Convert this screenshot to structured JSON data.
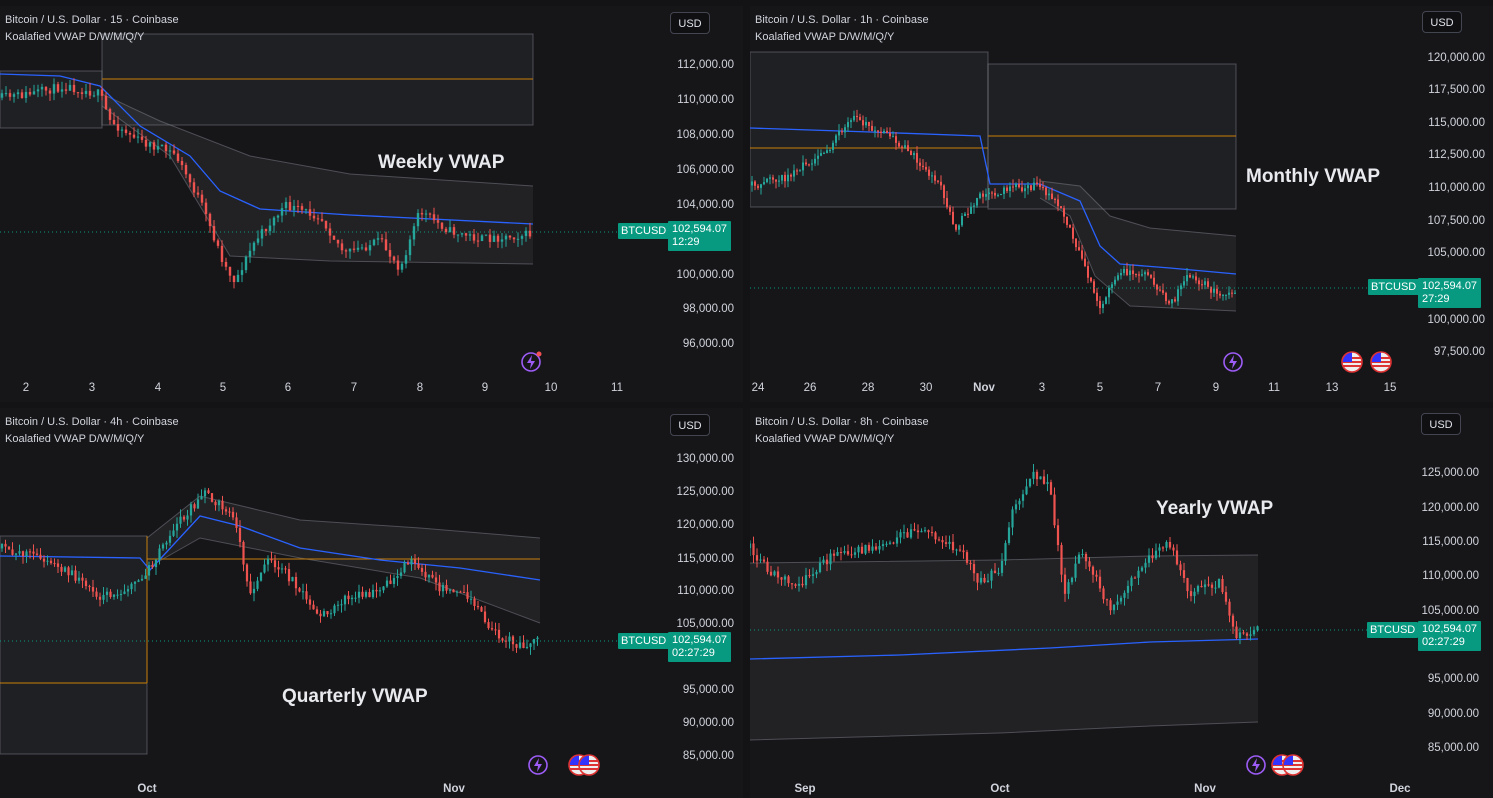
{
  "colors": {
    "bg": "#161619",
    "up": "#26a69a",
    "down": "#ef5350",
    "vwap": "#2962ff",
    "band": "#787b86",
    "anchor": "#c87f0a",
    "price_label": "#089981"
  },
  "icons": [
    "lightning-icon",
    "us-flag-icon"
  ],
  "panes": [
    {
      "title": "Bitcoin / U.S. Dollar · 15 · Coinbase",
      "indicator": "Koalafied VWAP D/W/M/Q/Y",
      "currency": "USD",
      "annotation": "Weekly VWAP",
      "symbol": "BTCUSD",
      "last_price": "102,594.07",
      "countdown": "12:29",
      "y_ticks": [
        "112,000.00",
        "110,000.00",
        "108,000.00",
        "106,000.00",
        "104,000.00",
        "100,000.00",
        "98,000.00",
        "96,000.00"
      ],
      "x_ticks": [
        "2",
        "3",
        "4",
        "5",
        "6",
        "7",
        "8",
        "9",
        "10",
        "11"
      ],
      "flags": 0
    },
    {
      "title": "Bitcoin / U.S. Dollar · 1h · Coinbase",
      "indicator": "Koalafied VWAP D/W/M/Q/Y",
      "currency": "USD",
      "annotation": "Monthly VWAP",
      "symbol": "BTCUSD",
      "last_price": "102,594.07",
      "countdown": "27:29",
      "y_ticks": [
        "120,000.00",
        "117,500.00",
        "115,000.00",
        "112,500.00",
        "110,000.00",
        "107,500.00",
        "105,000.00",
        "100,000.00",
        "97,500.00"
      ],
      "x_ticks": [
        "24",
        "26",
        "28",
        "30",
        "Nov",
        "3",
        "5",
        "7",
        "9",
        "11",
        "13",
        "15"
      ],
      "flags": 2
    },
    {
      "title": "Bitcoin / U.S. Dollar · 4h · Coinbase",
      "indicator": "Koalafied VWAP D/W/M/Q/Y",
      "currency": "USD",
      "annotation": "Quarterly VWAP",
      "symbol": "BTCUSD",
      "last_price": "102,594.07",
      "countdown": "02:27:29",
      "y_ticks": [
        "130,000.00",
        "125,000.00",
        "120,000.00",
        "115,000.00",
        "110,000.00",
        "105,000.00",
        "95,000.00",
        "90,000.00",
        "85,000.00"
      ],
      "x_ticks": [
        "Oct",
        "Nov"
      ],
      "flags": 2
    },
    {
      "title": "Bitcoin / U.S. Dollar · 8h · Coinbase",
      "indicator": "Koalafied VWAP D/W/M/Q/Y",
      "currency": "USD",
      "annotation": "Yearly VWAP",
      "symbol": "BTCUSD",
      "last_price": "102,594.07",
      "countdown": "02:27:29",
      "y_ticks": [
        "125,000.00",
        "120,000.00",
        "115,000.00",
        "110,000.00",
        "105,000.00",
        "95,000.00",
        "90,000.00",
        "85,000.00"
      ],
      "x_ticks": [
        "Sep",
        "Oct",
        "Nov",
        "Dec"
      ],
      "flags": 2
    }
  ]
}
